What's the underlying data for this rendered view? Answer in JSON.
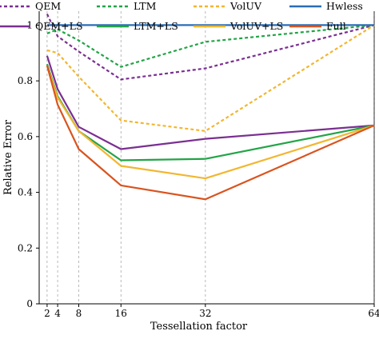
{
  "chart_data": {
    "type": "line",
    "title": "",
    "xlabel": "Tessellation factor",
    "ylabel": "Relative Error",
    "x": [
      2,
      4,
      8,
      16,
      32,
      64
    ],
    "xticks": [
      "2",
      "4",
      "8",
      "16",
      "32",
      "64"
    ],
    "yticks": [
      "0",
      "0.2",
      "0.4",
      "0.6",
      "0.8",
      "1"
    ],
    "ylim": [
      0,
      1.05
    ],
    "grid": "vertical dashed at tick positions",
    "legend_position": "top, two rows",
    "series": [
      {
        "name": "QEM",
        "color": "#7a2f91",
        "style": "dashed",
        "values": [
          1.04,
          0.96,
          0.905,
          0.805,
          0.845,
          1.0
        ]
      },
      {
        "name": "LTM",
        "color": "#22a447",
        "style": "dashed",
        "values": [
          0.97,
          0.985,
          0.945,
          0.85,
          0.94,
          1.0
        ]
      },
      {
        "name": "VolUV",
        "color": "#f2b630",
        "style": "dashed",
        "values": [
          0.91,
          0.9,
          0.815,
          0.658,
          0.62,
          1.0
        ]
      },
      {
        "name": "Hwless",
        "color": "#2a6db5",
        "style": "solid",
        "values": [
          1.0,
          1.0,
          1.0,
          1.0,
          1.0,
          1.0
        ]
      },
      {
        "name": "QEM+LS",
        "color": "#7a2f91",
        "style": "solid",
        "values": [
          0.89,
          0.77,
          0.635,
          0.555,
          0.592,
          0.64
        ]
      },
      {
        "name": "LTM+LS",
        "color": "#22a447",
        "style": "solid",
        "values": [
          0.86,
          0.745,
          0.62,
          0.515,
          0.52,
          0.64
        ]
      },
      {
        "name": "VolUV+LS",
        "color": "#f2b630",
        "style": "solid",
        "values": [
          0.855,
          0.74,
          0.62,
          0.495,
          0.45,
          0.64
        ]
      },
      {
        "name": "Full",
        "color": "#d9541f",
        "style": "solid",
        "values": [
          0.855,
          0.715,
          0.555,
          0.425,
          0.375,
          0.64
        ]
      }
    ]
  }
}
